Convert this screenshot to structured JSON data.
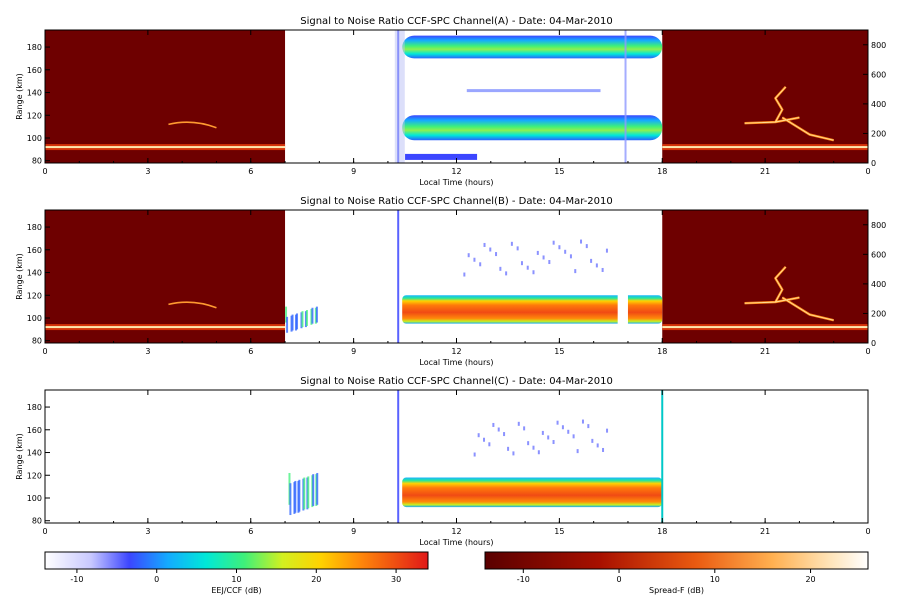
{
  "chart_data": [
    {
      "type": "heatmap",
      "title": "Signal to Noise Ratio CCF-SPC Channel(A) - Date: 04-Mar-2010",
      "xlabel": "Local Time (hours)",
      "ylabel": "Range (km)",
      "xlim": [
        0,
        24
      ],
      "ylim": [
        78,
        195
      ],
      "x_ticks": [
        "0",
        "3",
        "6",
        "9",
        "12",
        "15",
        "18",
        "21",
        "0"
      ],
      "y_ticks": [
        "80",
        "100",
        "120",
        "140",
        "160",
        "180"
      ],
      "right_ticks": [
        "0",
        "200",
        "400",
        "600",
        "800"
      ],
      "right_lim": [
        0,
        900
      ],
      "features": {
        "spreadF_intervals_hours": [
          [
            0,
            7
          ],
          [
            18,
            24
          ]
        ],
        "spreadF_baseline_km": 92,
        "spreadF_plume": {
          "x": [
            20.4,
            23.0
          ],
          "range_km": [
            96,
            145
          ]
        },
        "eej_day_x_hours": [
          10.3,
          18.0
        ],
        "eej_bands_km": [
          [
            98,
            120
          ],
          [
            170,
            190
          ]
        ]
      }
    },
    {
      "type": "heatmap",
      "title": "Signal to Noise Ratio CCF-SPC Channel(B) - Date: 04-Mar-2010",
      "xlabel": "Local Time (hours)",
      "ylabel": "Range (km)",
      "xlim": [
        0,
        24
      ],
      "ylim": [
        78,
        195
      ],
      "x_ticks": [
        "0",
        "3",
        "6",
        "9",
        "12",
        "15",
        "18",
        "21",
        "0"
      ],
      "y_ticks": [
        "80",
        "100",
        "120",
        "140",
        "160",
        "180"
      ],
      "right_ticks": [
        "0",
        "200",
        "400",
        "600",
        "800"
      ],
      "right_lim": [
        0,
        900
      ],
      "features": {
        "spreadF_intervals_hours": [
          [
            0,
            7
          ],
          [
            18,
            24
          ]
        ],
        "spreadF_baseline_km": 92,
        "eej_day_x_hours": [
          10.3,
          18.0
        ],
        "eej_band_km": [
          95,
          120
        ],
        "eej_gap_hours": [
          16.7,
          17.0
        ]
      }
    },
    {
      "type": "heatmap",
      "title": "Signal to Noise Ratio CCF-SPC Channel(C) - Date: 04-Mar-2010",
      "xlabel": "Local Time (hours)",
      "ylabel": "Range (km)",
      "xlim": [
        0,
        24
      ],
      "ylim": [
        78,
        195
      ],
      "x_ticks": [
        "0",
        "3",
        "6",
        "9",
        "12",
        "15",
        "18",
        "21",
        "0"
      ],
      "y_ticks": [
        "80",
        "100",
        "120",
        "140",
        "160",
        "180"
      ],
      "features": {
        "eej_day_x_hours": [
          10.3,
          18.0
        ],
        "eej_band_km": [
          92,
          118
        ],
        "scatter_clusters_hours": [
          [
            7.1,
            8.0
          ],
          [
            12.5,
            16.4
          ]
        ]
      }
    }
  ],
  "colorbars": [
    {
      "label": "EEJ/CCF (dB)",
      "ticks": [
        "-10",
        "0",
        "10",
        "20",
        "30"
      ],
      "range": [
        -14,
        34
      ],
      "palette": "blue-cyan-green-yellow-orange-red"
    },
    {
      "label": "Spread-F (dB)",
      "ticks": [
        "-10",
        "0",
        "10",
        "20"
      ],
      "range": [
        -14,
        26
      ],
      "palette": "dark-red-orange-white"
    }
  ],
  "colors": {
    "spreadF_bg": "#6e0000",
    "eej_core": "#f04a14"
  }
}
